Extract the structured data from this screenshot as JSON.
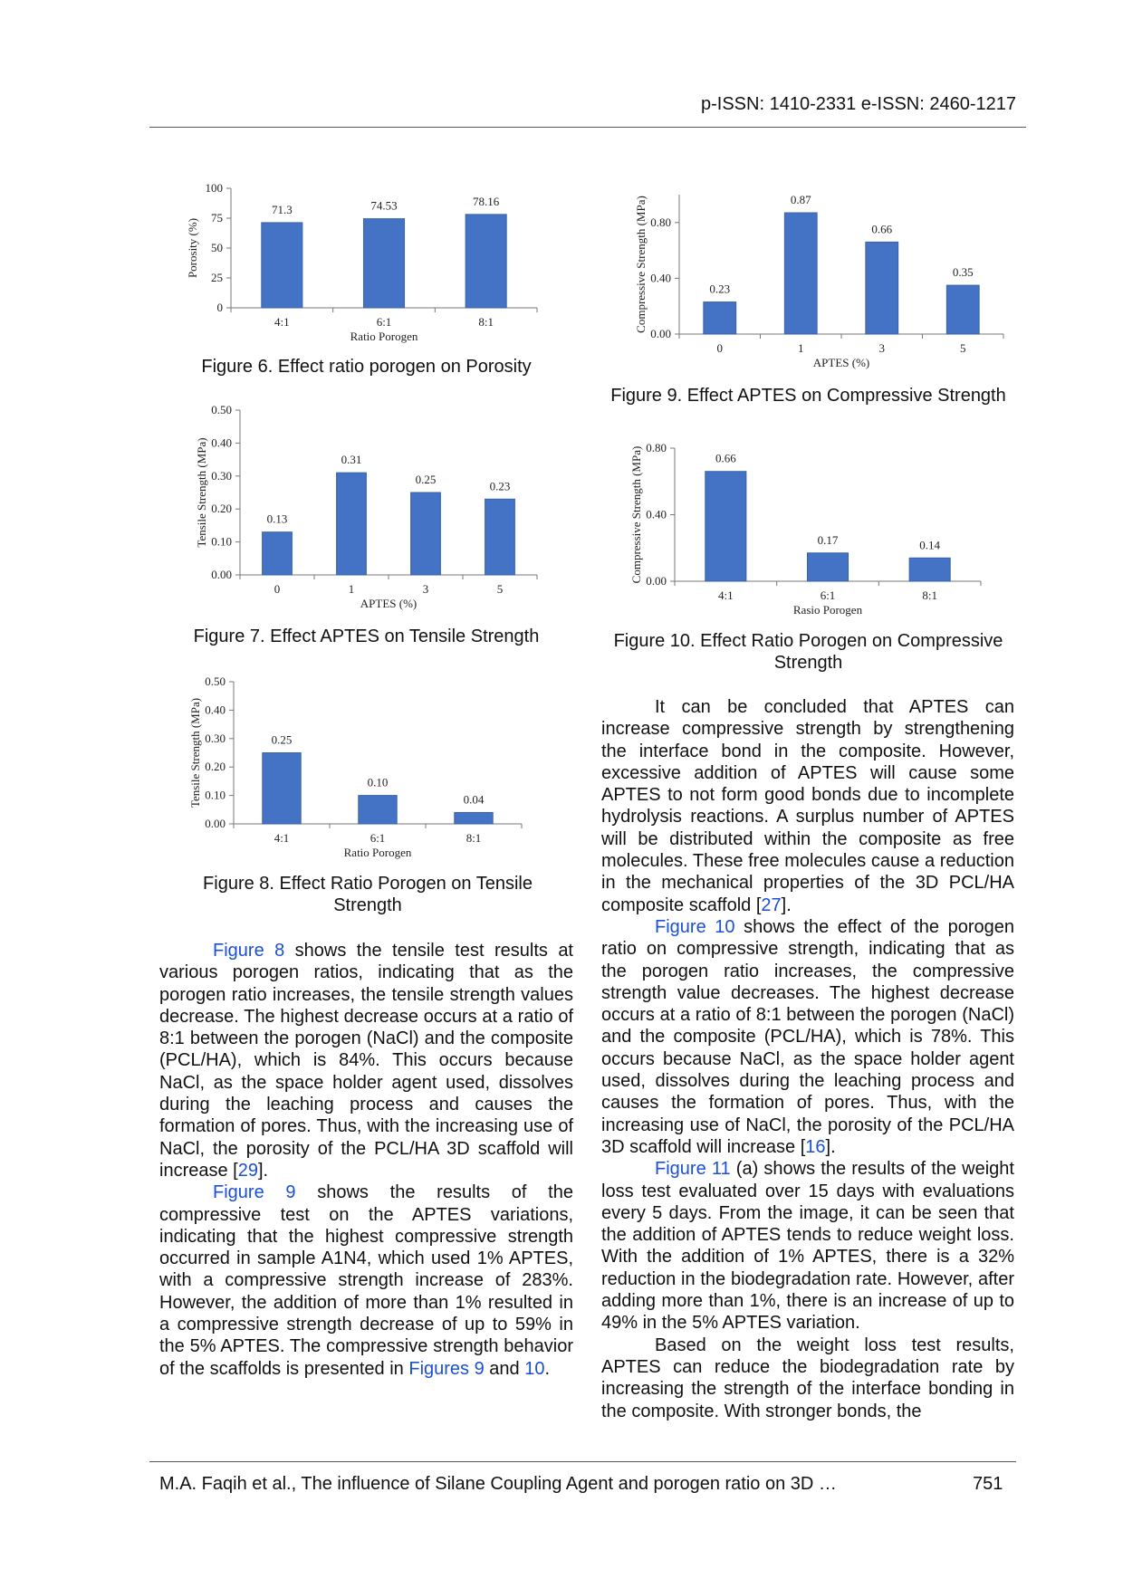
{
  "header": {
    "issn": "p-ISSN: 1410-2331  e-ISSN: 2460-1217"
  },
  "chart_data": [
    {
      "id": "fig6",
      "type": "bar",
      "categories": [
        "4:1",
        "6:1",
        "8:1"
      ],
      "values": [
        71.3,
        74.53,
        78.16
      ],
      "labels": [
        "71.3",
        "74.53",
        "78.16"
      ],
      "xlabel": "Ratio Porogen",
      "ylabel": "Porosity (%)",
      "ylim": [
        0,
        100
      ],
      "yticks": [
        "0",
        "25",
        "50",
        "75",
        "100"
      ],
      "ytick_values": [
        0,
        25,
        50,
        75,
        100
      ],
      "grid": false,
      "bar_color": "#4472c4"
    },
    {
      "id": "fig9",
      "type": "bar",
      "categories": [
        "0",
        "1",
        "3",
        "5"
      ],
      "values": [
        0.23,
        0.87,
        0.66,
        0.35
      ],
      "labels": [
        "0.23",
        "0.87",
        "0.66",
        "0.35"
      ],
      "xlabel": "APTES (%)",
      "ylabel": "Compressive  Strength (MPa)",
      "ylim": [
        0,
        1.0
      ],
      "yticks": [
        "0.00",
        "0.40",
        "0.80"
      ],
      "ytick_values": [
        0,
        0.4,
        0.8
      ],
      "grid": false,
      "bar_color": "#4472c4"
    },
    {
      "id": "fig7",
      "type": "bar",
      "categories": [
        "0",
        "1",
        "3",
        "5"
      ],
      "values": [
        0.13,
        0.31,
        0.25,
        0.23
      ],
      "labels": [
        "0.13",
        "0.31",
        "0.25",
        "0.23"
      ],
      "xlabel": "APTES (%)",
      "ylabel": "Tensile Strength (MPa)",
      "ylim": [
        0,
        0.5
      ],
      "yticks": [
        "0.00",
        "0.10",
        "0.20",
        "0.30",
        "0.40",
        "0.50"
      ],
      "ytick_values": [
        0,
        0.1,
        0.2,
        0.3,
        0.4,
        0.5
      ],
      "grid": false,
      "bar_color": "#4472c4"
    },
    {
      "id": "fig10",
      "type": "bar",
      "categories": [
        "4:1",
        "6:1",
        "8:1"
      ],
      "values": [
        0.66,
        0.17,
        0.14
      ],
      "labels": [
        "0.66",
        "0.17",
        "0.14"
      ],
      "xlabel": "Rasio Porogen",
      "ylabel": "Compressive  Strength (MPa)",
      "ylim": [
        0,
        0.8
      ],
      "yticks": [
        "0.00",
        "0.40",
        "0.80"
      ],
      "ytick_values": [
        0,
        0.4,
        0.8
      ],
      "grid": false,
      "bar_color": "#4472c4"
    },
    {
      "id": "fig8",
      "type": "bar",
      "categories": [
        "4:1",
        "6:1",
        "8:1"
      ],
      "values": [
        0.25,
        0.1,
        0.04
      ],
      "labels": [
        "0.25",
        "0.10",
        "0.04"
      ],
      "xlabel": "Ratio Porogen",
      "ylabel": "Tensile Strength (MPa)",
      "ylim": [
        0,
        0.5
      ],
      "yticks": [
        "0.00",
        "0.10",
        "0.20",
        "0.30",
        "0.40",
        "0.50"
      ],
      "ytick_values": [
        0,
        0.1,
        0.2,
        0.3,
        0.4,
        0.5
      ],
      "grid": false,
      "bar_color": "#4472c4"
    }
  ],
  "captions": {
    "fig6": "Figure 6. Effect ratio porogen on Porosity",
    "fig9": "Figure 9. Effect APTES on Compressive Strength",
    "fig7": "Figure 7. Effect APTES on Tensile Strength",
    "fig10": "Figure 10. Effect Ratio Porogen on Compressive Strength",
    "fig8": "Figure 8. Effect Ratio Porogen on Tensile Strength"
  },
  "left_column": [
    [
      {
        "t": "Figure 8",
        "link": true
      },
      {
        "t": " shows the tensile test results at various porogen ratios, indicating that as the porogen ratio increases, the tensile strength values decrease. The highest decrease occurs at a ratio of 8:1 between the porogen (NaCl) and the composite (PCL/HA), which is 84%. This occurs because NaCl, as the space holder agent used, dissolves during the leaching process and causes the formation of pores. Thus, with the increasing use of NaCl, the porosity of the PCL/HA 3D scaffold will increase ["
      },
      {
        "t": "29",
        "link": true
      },
      {
        "t": "]."
      }
    ],
    [
      {
        "t": "Figure 9",
        "link": true
      },
      {
        "t": " shows the results of the compressive test on the APTES variations, indicating that the highest compressive strength occurred in sample A1N4, which used 1% APTES, with a compressive strength increase of 283%. However, the addition of more than 1% resulted in a compressive strength decrease of up to 59% in the 5% APTES. The compressive strength behavior of the scaffolds is presented in "
      },
      {
        "t": "Figures 9",
        "link": true
      },
      {
        "t": " and "
      },
      {
        "t": "10",
        "link": true
      },
      {
        "t": "."
      }
    ]
  ],
  "right_column": [
    [
      {
        "t": "It can be concluded that APTES can increase compressive strength by strengthening the interface bond in the composite. However, excessive addition of APTES will cause some APTES to not form good bonds due to incomplete hydrolysis reactions. A surplus number of APTES will be distributed within the composite as free molecules. These free molecules cause a reduction in the mechanical properties of the 3D PCL/HA composite scaffold ["
      },
      {
        "t": "27",
        "link": true
      },
      {
        "t": "]."
      }
    ],
    [
      {
        "t": "Figure 10",
        "link": true
      },
      {
        "t": " shows the effect of the porogen ratio on compressive strength, indicating that as the porogen ratio increases, the compressive strength value decreases. The highest decrease occurs at a ratio of 8:1 between the porogen (NaCl) and the composite (PCL/HA), which is 78%. This occurs because NaCl, as the space holder agent used, dissolves during the leaching process and causes the formation of pores. Thus, with the increasing use of NaCl, the porosity of the PCL/HA 3D scaffold will increase ["
      },
      {
        "t": "16",
        "link": true
      },
      {
        "t": "]."
      }
    ],
    [
      {
        "t": "Figure 11",
        "link": true
      },
      {
        "t": " (a) shows the results of the weight loss test evaluated over 15 days with evaluations every 5 days. From the image, it can be seen that the addition of APTES tends to reduce weight loss. With the addition of 1% APTES, there is a 32% reduction in the biodegradation rate. However, after adding more than 1%, there is an increase of up to 49% in the 5% APTES variation."
      }
    ],
    [
      {
        "t": "Based on the weight loss test results, APTES can reduce the biodegradation rate by increasing the strength of the interface bonding in the composite. With stronger bonds, the"
      }
    ]
  ],
  "footer": {
    "citation": "M.A. Faqih et al., The influence of Silane Coupling Agent and porogen ratio on 3D …",
    "page": "751"
  }
}
